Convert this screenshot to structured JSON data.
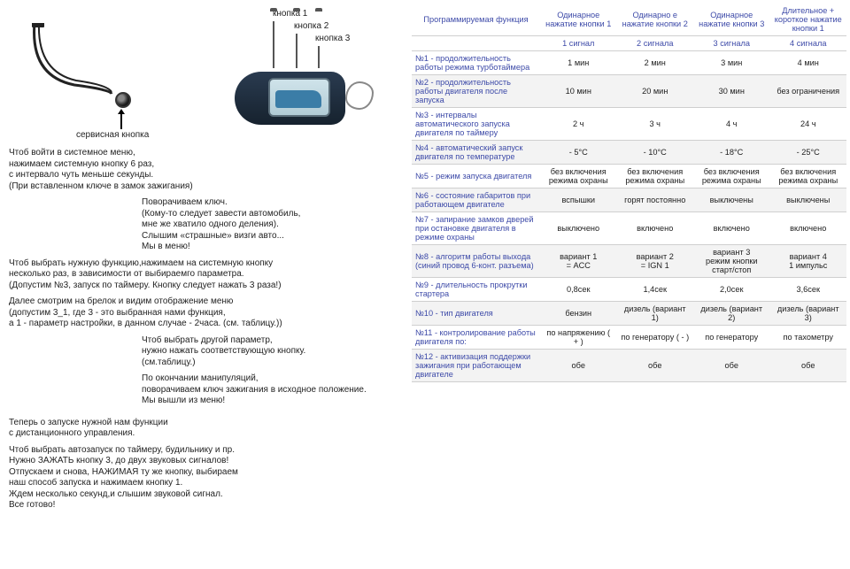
{
  "diagram": {
    "btn1": "кнопка 1",
    "btn2": "кнопка 2",
    "btn3": "кнопка 3",
    "service": "сервисная кнопка"
  },
  "left": {
    "p1": "Чтоб войти в системное меню,\nнажимаем системную кнопку 6 раз,\nс интервало чуть меньше секунды.\n(При вставленном ключе в замок зажигания)",
    "p2": "Поворачиваем ключ.\n(Кому-то следует завести автомобиль,\nмне же хватило одного деления).\nСлышим «страшные» визги авто...\nМы в меню!",
    "p3": "Чтоб выбрать нужную функцию,нажимаем на системную кнопку\nнесколько раз, в зависимости от выбираемго параметра.\n(Допустим №3, запуск по таймеру. Кнопку следует нажать 3 раза!)",
    "p4": "Далее смотрим на брелок и видим отображение меню\n(допустим 3_1, где 3 - это выбранная нами функция,\nа 1 - параметр настройки, в данном случае - 2часа. (см. таблицу.))",
    "p5": "Чтоб выбрать другой параметр,\nнужно нажать соответствующую кнопку.\n(см.таблицу.)",
    "p6": "По окончании манипуляций,\nповорачиваем ключ зажигания в исходное положение.\nМы вышли из меню!",
    "p7": "Теперь о запуске нужной нам функции\nс дистанционного управления.",
    "p8": "Чтоб выбрать автозапуск по таймеру, будильнику и пр.\nНужно ЗАЖАТЬ кнопку 3, до двух звуковых сигналов!\nОтпускаем и снова, НАЖИМАЯ ту же кнопку, выбираем\nнаш способ запуска и нажимаем кнопку 1.\nЖдем несколько секунд,и слышим звуковой сигнал.\nВсе готово!"
  },
  "table": {
    "head": [
      "Программируемая функция",
      "Одинарное нажатие кнопки 1",
      "Одинарно е нажатие кнопки 2",
      "Одинарное нажатие кнопки 3",
      "Длительное + короткое нажатие кнопки 1"
    ],
    "signals": [
      "",
      "1 сигнал",
      "2 сигнала",
      "3 сигнала",
      "4 сигнала"
    ],
    "rows": [
      [
        "№1 - продолжительность работы режима турботаймера",
        "1 мин",
        "2 мин",
        "3 мин",
        "4 мин"
      ],
      [
        "№2 - продолжительность работы двигателя после запуска",
        "10 мин",
        "20 мин",
        "30 мин",
        "без ограничения"
      ],
      [
        "№3 - интервалы автоматического запуска двигателя по таймеру",
        "2 ч",
        "3 ч",
        "4 ч",
        "24 ч"
      ],
      [
        "№4 - автоматический запуск двигателя по температуре",
        "- 5°C",
        "- 10°C",
        "- 18°C",
        "- 25°C"
      ],
      [
        "№5 - режим запуска двигателя",
        "без включения режима охраны",
        "без включения режима охраны",
        "без включения режима охраны",
        "без включения режима охраны"
      ],
      [
        "№6 - состояние габаритов при работающем двигателе",
        "вспышки",
        "горят постоянно",
        "выключены",
        "выключены"
      ],
      [
        "№7 - запирание замков дверей при остановке двигателя в режиме охраны",
        "выключено",
        "включено",
        "включено",
        "включено"
      ],
      [
        "№8 - алгоритм работы выхода (синий провод 6-конт. разъема)",
        "вариант 1\n= ACC",
        "вариант 2\n= IGN 1",
        "вариант 3\nрежим кнопки старт/стоп",
        "вариант 4\n1 импульс"
      ],
      [
        "№9 - длительность прокрутки стартера",
        "0,8сек",
        "1,4сек",
        "2,0сек",
        "3,6сек"
      ],
      [
        "№10 - тип двигателя",
        "бензин",
        "дизель (вариант 1)",
        "дизель (вариант 2)",
        "дизель (вариант 3)"
      ],
      [
        "№11 - контролирование работы двигателя по:",
        "по напряжению ( + )",
        "по генератору ( - )",
        "по генератору",
        "по тахометру"
      ],
      [
        "№12 - активизация поддержки зажигания при работающем двигателе",
        "обе",
        "обе",
        "обе",
        "обе"
      ]
    ]
  }
}
